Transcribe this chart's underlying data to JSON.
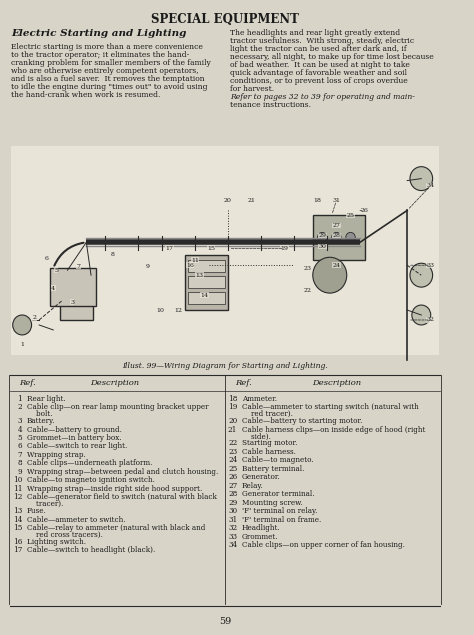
{
  "bg_color": "#d8d4c8",
  "page_color": "#e8e4d8",
  "title": "SPECIAL EQUIPMENT",
  "section_title": "Electric Starting and Lighting",
  "left_body": "Electric starting is more than a mere convenience\nto the tractor operator; it eliminates the hand-\ncranking problem for smaller members of the family\nwho are otherwise entirely competent operators,\nand is also a fuel saver.  It removes the temptation\nto idle the engine during \"times out\" to avoid using\nthe hand-crank when work is resumed.",
  "right_body": "The headlights and rear light greatly extend\ntractor usefulness.  With strong, steady, electric\nlight the tractor can be used after dark and, if\nnecessary, all night, to make up for time lost because\nof bad weather.  It can be used at night to take\nquick advantage of favorable weather and soil\nconditions, or to prevent loss of crops overdue\nfor harvest.\n    Refer to pages 32 to 39 for operating and main-\ntenance instructions.",
  "illust_caption": "Illust. 99—Wiring Diagram for Starting and Lighting.",
  "page_number": "59",
  "table_headers": [
    "Ref.",
    "Description",
    "Ref.",
    "Description"
  ],
  "table_left": [
    [
      "1",
      "Rear light."
    ],
    [
      "2",
      "Cable clip—on rear lamp mounting bracket upper\n    bolt."
    ],
    [
      "3",
      "Battery."
    ],
    [
      "4",
      "Cable—battery to ground."
    ],
    [
      "5",
      "Grommet—in battery box."
    ],
    [
      "6",
      "Cable—switch to rear light."
    ],
    [
      "7",
      "Wrapping strap."
    ],
    [
      "8",
      "Cable clips—underneath platform."
    ],
    [
      "9",
      "Wrapping strap—between pedal and clutch housing."
    ],
    [
      "10",
      "Cable—to magneto ignition switch."
    ],
    [
      "11",
      "Wrapping strap—inside right side hood support."
    ],
    [
      "12",
      "Cable—generator field to switch (natural with black\n    tracer)."
    ],
    [
      "13",
      "Fuse."
    ],
    [
      "14",
      "Cable—ammeter to switch."
    ],
    [
      "15",
      "Cable—relay to ammeter (natural with black and\n    red cross tracers)."
    ],
    [
      "16",
      "Lighting switch."
    ],
    [
      "17",
      "Cable—switch to headlight (black)."
    ]
  ],
  "table_right": [
    [
      "18",
      "Ammeter."
    ],
    [
      "19",
      "Cable—ammeter to starting switch (natural with\n    red tracer)."
    ],
    [
      "20",
      "Cable—battery to starting motor."
    ],
    [
      "21",
      "Cable harness clips—on inside edge of hood (right\n    side)."
    ],
    [
      "22",
      "Starting motor."
    ],
    [
      "23",
      "Cable harness."
    ],
    [
      "24",
      "Cable—to magneto."
    ],
    [
      "25",
      "Battery terminal."
    ],
    [
      "26",
      "Generator."
    ],
    [
      "27",
      "Relay."
    ],
    [
      "28",
      "Generator terminal."
    ],
    [
      "29",
      "Mounting screw."
    ],
    [
      "30",
      "'F' terminal on relay."
    ],
    [
      "31",
      "'F' terminal on frame."
    ],
    [
      "32",
      "Headlight."
    ],
    [
      "33",
      "Grommet."
    ],
    [
      "34",
      "Cable clips—on upper corner of fan housing."
    ]
  ],
  "text_color": "#1a1a1a",
  "line_color": "#2a2a2a"
}
